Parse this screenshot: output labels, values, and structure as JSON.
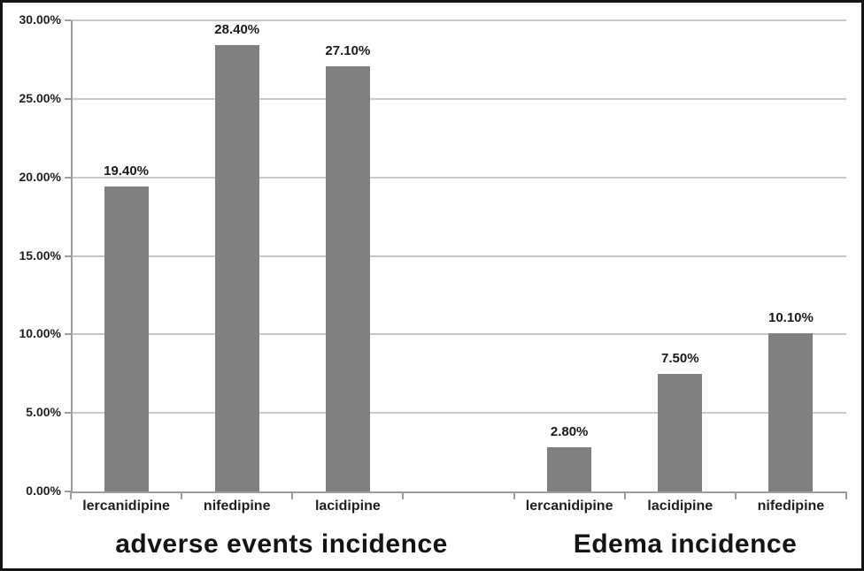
{
  "chart_data": {
    "type": "bar",
    "title": "",
    "xlabel": "",
    "ylabel": "",
    "ylim": [
      0,
      30
    ],
    "ytick_step": 5,
    "ytick_labels": [
      "0.00%",
      "5.00%",
      "10.00%",
      "15.00%",
      "20.00%",
      "25.00%",
      "30.00%"
    ],
    "grid": true,
    "legend": "none",
    "groups": [
      {
        "label": "adverse events incidence",
        "categories": [
          "lercanidipine",
          "nifedipine",
          "lacidipine"
        ],
        "values": [
          19.4,
          28.4,
          27.1
        ],
        "data_labels": [
          "19.40%",
          "28.40%",
          "27.10%"
        ]
      },
      {
        "label": "Edema incidence",
        "categories": [
          "lercanidipine",
          "lacidipine",
          "nifedipine"
        ],
        "values": [
          2.8,
          7.5,
          10.1
        ],
        "data_labels": [
          "2.80%",
          "7.50%",
          "10.10%"
        ]
      }
    ],
    "colors": {
      "bar": "#808080",
      "gridline": "#c8c8c8",
      "axis": "#9d9d9d",
      "text": "#1f1f1f",
      "frame": "#141414",
      "background": "#ffffff"
    }
  }
}
